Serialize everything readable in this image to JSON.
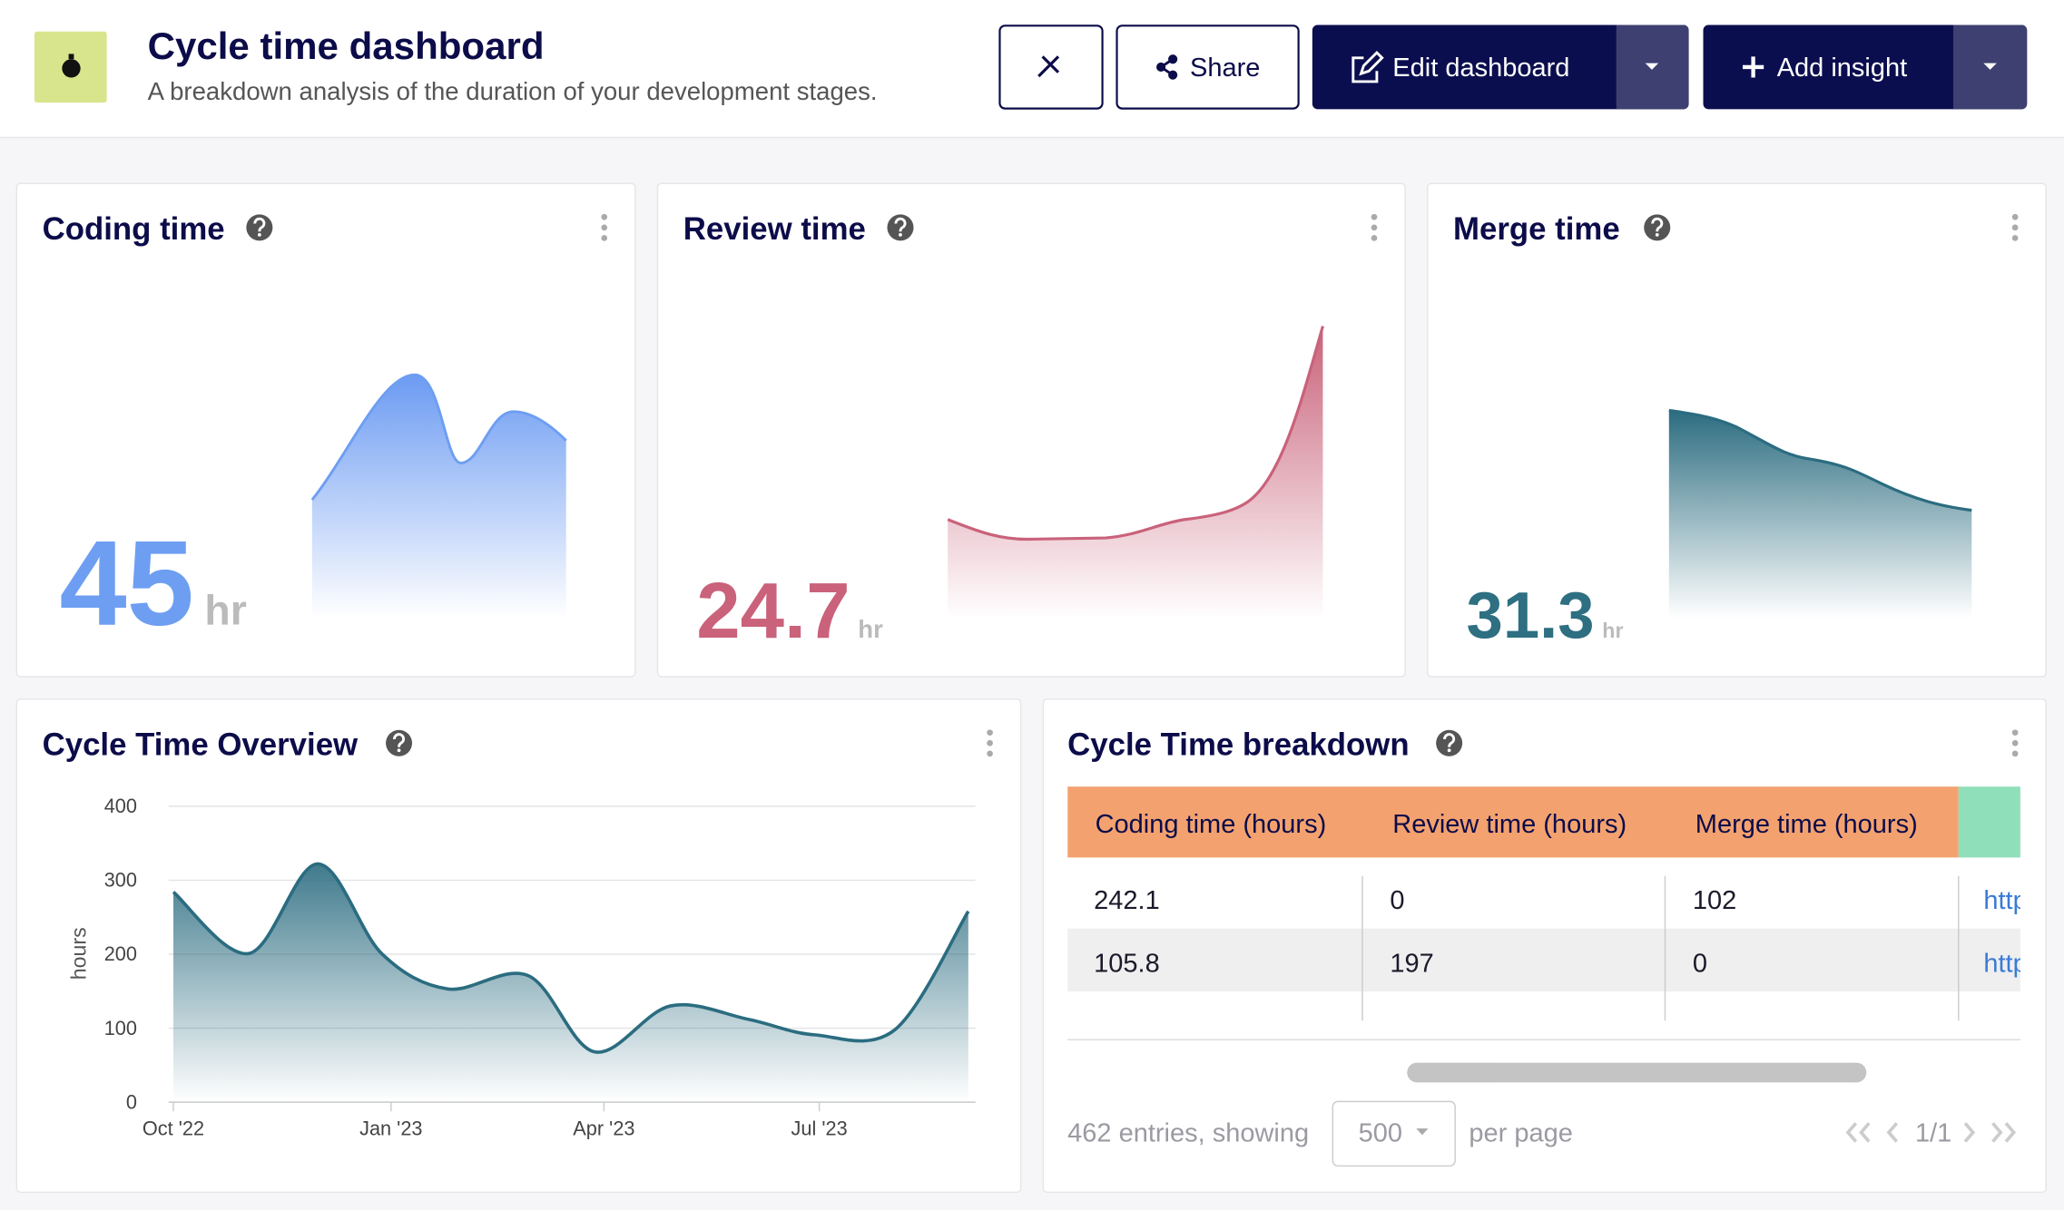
{
  "header": {
    "title": "Cycle time dashboard",
    "subtitle": "A breakdown analysis of the duration of your development stages.",
    "buttons": [
      "Share",
      "Edit dashboard",
      "Add insight"
    ]
  },
  "metric_cards": [
    {
      "title": "Coding time",
      "value": 45,
      "unit": "hr"
    },
    {
      "title": "Review time",
      "value": 24.7,
      "unit": "hr"
    },
    {
      "title": "Merge time",
      "value": 31.3,
      "unit": "hr"
    }
  ],
  "chart_data": {
    "type": "area",
    "title": "Cycle Time Overview",
    "y_label": "hours",
    "x": [
      "2022-10-01",
      "2022-11-02",
      "2022-12-01",
      "2022-12-28",
      "2023-01-25",
      "2023-02-28",
      "2023-03-28",
      "2023-04-29",
      "2023-06-01",
      "2023-06-29",
      "2023-08-02",
      "2023-09-02"
    ],
    "values": [
      284,
      201,
      322,
      201,
      153,
      171,
      68,
      130,
      112,
      91,
      98,
      258
    ],
    "color": "#2b6c80",
    "xlim": [
      "2022-09-29",
      "2023-09-05"
    ],
    "ylim": [
      0,
      400
    ],
    "xticks": [
      {
        "value": "2022-10-01",
        "label": "Oct '22"
      },
      {
        "value": "2023-01-01",
        "label": "Jan '23"
      },
      {
        "value": "2023-04-01",
        "label": "Apr '23"
      },
      {
        "value": "2023-07-01",
        "label": "Jul '23"
      }
    ],
    "yticks": [
      0,
      100,
      200,
      300,
      400
    ],
    "grid": true
  },
  "breakdown": {
    "title": "Cycle Time breakdown",
    "columns": [
      "Coding time (hours)",
      "Review time (hours)",
      "Merge time (hours)"
    ],
    "rows": [
      [
        242.1,
        0,
        102,
        "http"
      ],
      [
        105.8,
        197,
        0,
        "http"
      ]
    ],
    "footer": {
      "entries": "462 entries, showing",
      "page_size": 500,
      "per_page": "per page",
      "page": "1/1"
    }
  }
}
